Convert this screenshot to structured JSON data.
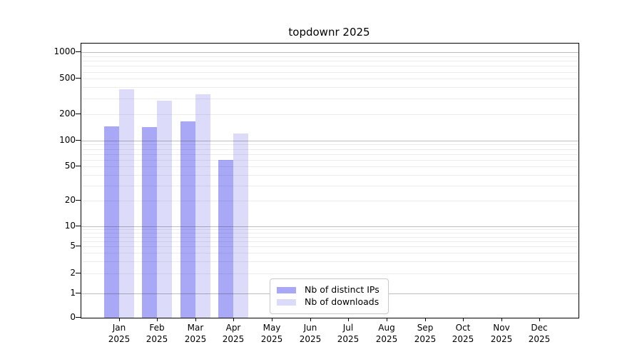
{
  "chart_data": {
    "type": "bar",
    "title": "topdownr 2025",
    "categories": [
      "Jan",
      "Feb",
      "Mar",
      "Apr",
      "May",
      "Jun",
      "Jul",
      "Aug",
      "Sep",
      "Oct",
      "Nov",
      "Dec"
    ],
    "category_year": "2025",
    "series": [
      {
        "name": "Nb of distinct IPs",
        "color": "#a8a8f7",
        "values": [
          145,
          142,
          165,
          60,
          null,
          null,
          null,
          null,
          null,
          null,
          null,
          null
        ]
      },
      {
        "name": "Nb of downloads",
        "color": "#dcdcfa",
        "values": [
          380,
          285,
          335,
          120,
          null,
          null,
          null,
          null,
          null,
          null,
          null,
          null
        ]
      }
    ],
    "yscale": "log-with-zero",
    "ylim": [
      0,
      1250
    ],
    "y_ticks": [
      0,
      1,
      2,
      5,
      10,
      20,
      50,
      100,
      200,
      500,
      1000
    ],
    "y_major_gridlines": [
      1,
      10,
      100,
      1000
    ],
    "y_minor_gridlines": [
      2,
      3,
      4,
      5,
      6,
      7,
      8,
      9,
      20,
      30,
      40,
      50,
      60,
      70,
      80,
      90,
      200,
      300,
      400,
      500,
      600,
      700,
      800,
      900
    ],
    "grid": true,
    "legend": {
      "position": "inside-bottom-center-left",
      "entries": [
        "Nb of distinct IPs",
        "Nb of downloads"
      ]
    }
  }
}
